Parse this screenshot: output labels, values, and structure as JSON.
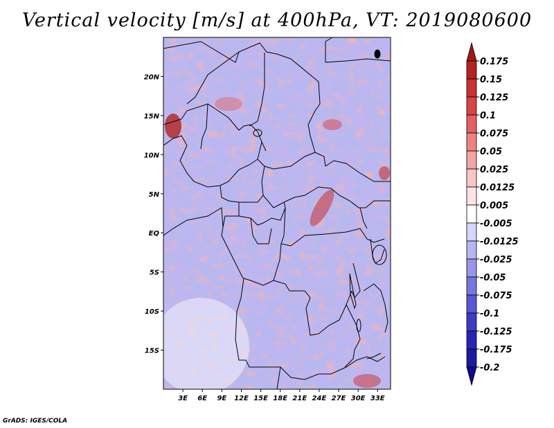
{
  "title": "Vertical velocity [m/s] at 400hPa, VT: 2019080600",
  "credit": "GrADS: IGES/COLA",
  "map": {
    "lon_range": [
      0,
      35
    ],
    "lat_range": [
      -20,
      25
    ],
    "lat_labels": [
      "20N",
      "15N",
      "10N",
      "5N",
      "EQ",
      "5S",
      "10S",
      "15S"
    ],
    "lat_values": [
      20,
      15,
      10,
      5,
      0,
      -5,
      -10,
      -15
    ],
    "lon_labels": [
      "3E",
      "6E",
      "9E",
      "12E",
      "15E",
      "18E",
      "21E",
      "24E",
      "27E",
      "30E",
      "33E"
    ],
    "lon_values": [
      3,
      6,
      9,
      12,
      15,
      18,
      21,
      24,
      27,
      30,
      33
    ]
  },
  "colorbar": {
    "labels": [
      "0.175",
      "0.15",
      "0.125",
      "0.1",
      "0.075",
      "0.05",
      "0.025",
      "0.0125",
      "0.005",
      "-0.005",
      "-0.0125",
      "-0.025",
      "-0.05",
      "-0.075",
      "-0.1",
      "-0.125",
      "-0.175",
      "-0.2"
    ],
    "colors": [
      "#a01818",
      "#b42222",
      "#c83232",
      "#d94444",
      "#e56060",
      "#ee8282",
      "#f4a4a4",
      "#f9c6c6",
      "#fce4e4",
      "#ffffff",
      "#d6d6fa",
      "#b6b6f2",
      "#9696ea",
      "#7676e0",
      "#5858d4",
      "#3c3cc6",
      "#2626b4",
      "#1c1ca0",
      "#100c8c"
    ]
  }
}
